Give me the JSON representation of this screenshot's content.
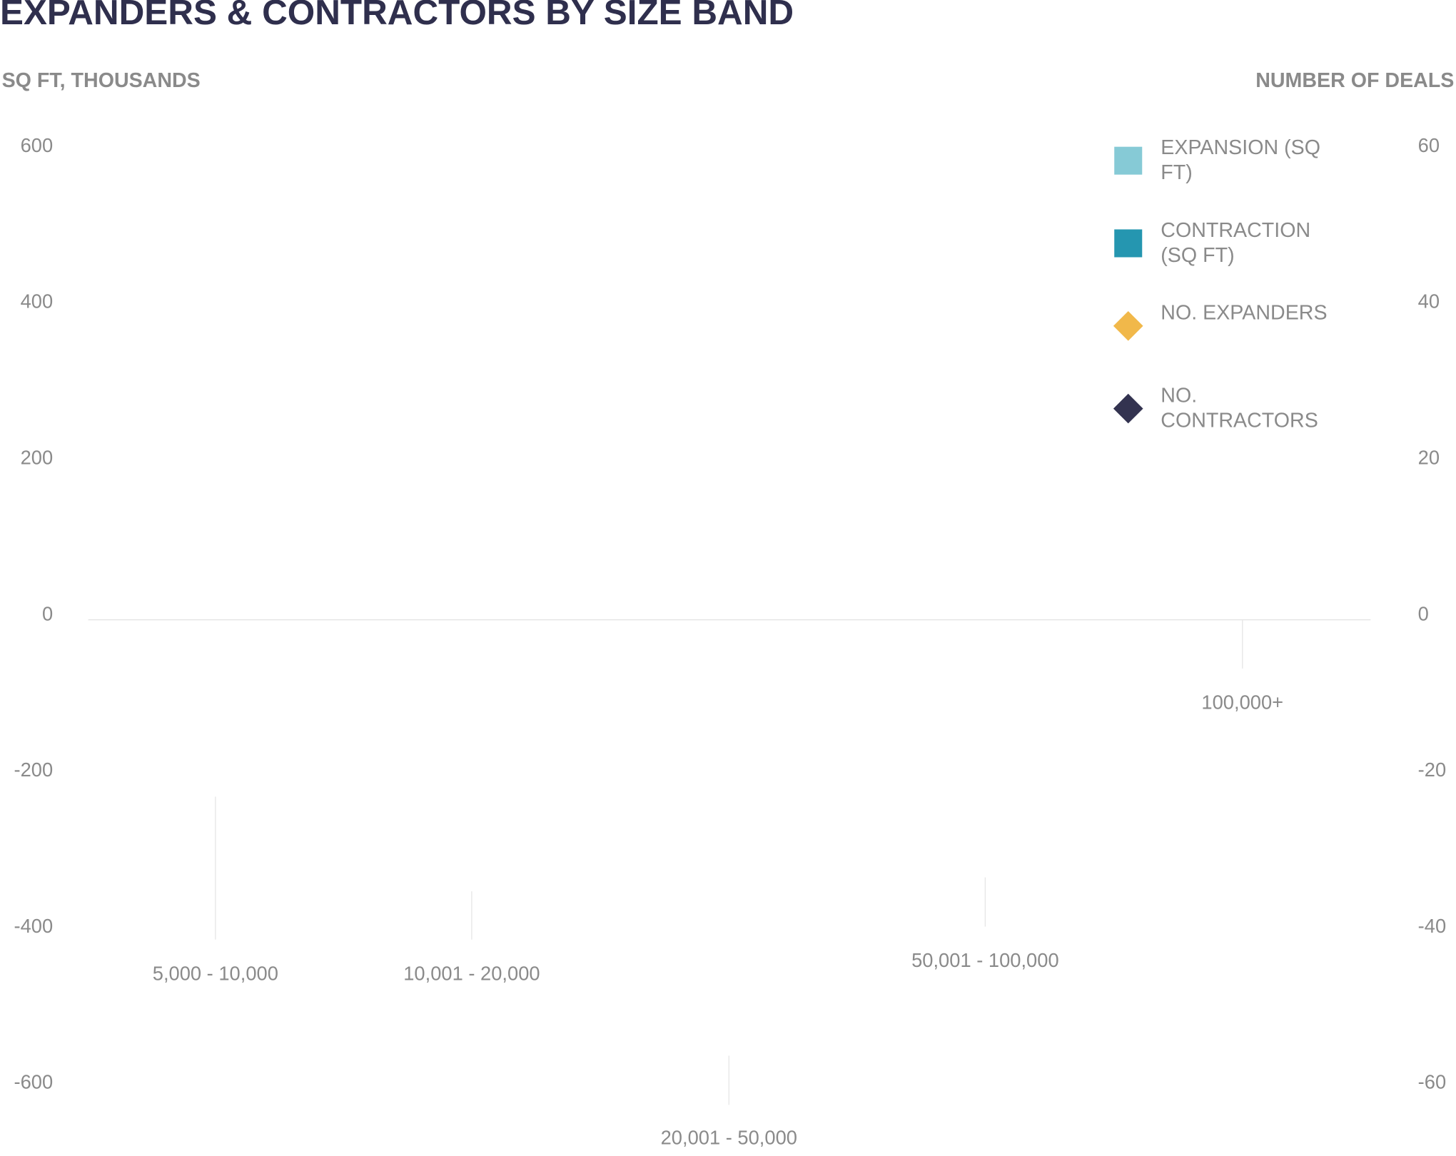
{
  "chart_data": {
    "type": "bar",
    "title": "EXPANDERS & CONTRACTORS BY SIZE BAND",
    "y_label": "SQ FT, THOUSANDS",
    "y2_label": "NUMBER OF DEALS",
    "categories": [
      "5,000 - 10,000",
      "10,001 - 20,000",
      "20,001 - 50,000",
      "50,001 - 100,000",
      "100,000+"
    ],
    "series": [
      {
        "name": "EXPANSION (SQ FT)",
        "color": "#86cad6",
        "marker": "square",
        "values": [
          null,
          null,
          null,
          null,
          null
        ]
      },
      {
        "name": "CONTRACTION (SQ FT)",
        "color": "#2596b0",
        "marker": "square",
        "values": [
          null,
          null,
          null,
          null,
          null
        ]
      },
      {
        "name": "NO. EXPANDERS",
        "color": "#f1b84a",
        "marker": "diamond",
        "axis": "y2",
        "values": [
          null,
          null,
          null,
          null,
          null
        ]
      },
      {
        "name": "NO. CONTRACTORS",
        "color": "#333350",
        "marker": "diamond",
        "axis": "y2",
        "values": [
          null,
          null,
          null,
          null,
          null
        ]
      }
    ],
    "ylim": [
      -600,
      600
    ],
    "yticks": [
      600,
      400,
      200,
      0,
      -200,
      -400,
      -600
    ],
    "y2lim": [
      -60,
      60
    ],
    "y2ticks": [
      60,
      40,
      20,
      0,
      -20,
      -40,
      -60
    ],
    "grid": false,
    "legend": "top-right"
  }
}
